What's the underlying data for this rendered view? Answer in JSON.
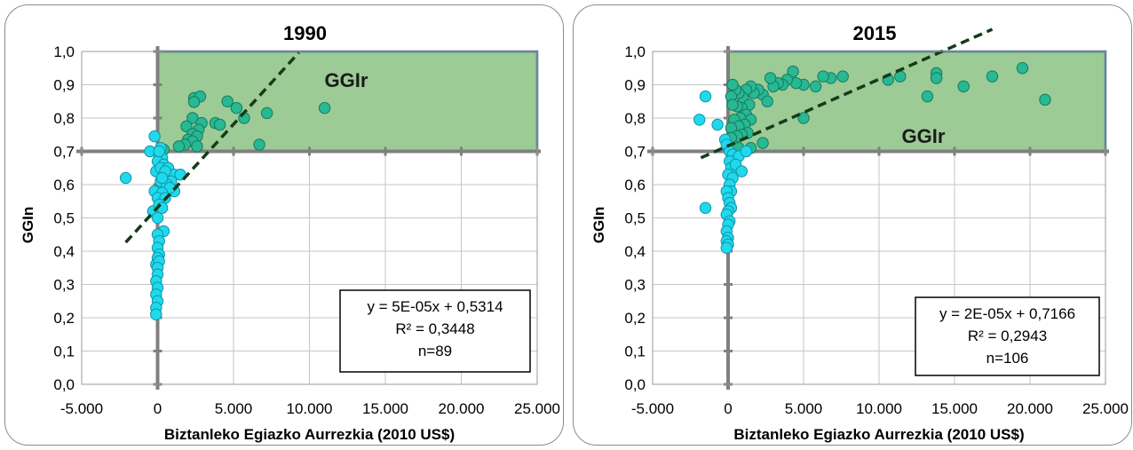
{
  "chart_data": [
    {
      "type": "scatter",
      "title": "1990",
      "xlabel": "Biztanleko Egiazko Aurrezkia (2010 US$)",
      "ylabel": "GGIn",
      "xlim": [
        -5000,
        25000
      ],
      "ylim": [
        0.0,
        1.0
      ],
      "x_ticks": [
        "-5.000",
        "0",
        "5.000",
        "10.000",
        "15.000",
        "20.000",
        "25.000"
      ],
      "y_ticks": [
        "0,0",
        "0,1",
        "0,2",
        "0,3",
        "0,4",
        "0,5",
        "0,6",
        "0,7",
        "0,8",
        "0,9",
        "1,0"
      ],
      "region": {
        "label": "GGIr",
        "x": [
          0,
          25000
        ],
        "y": [
          0.7,
          1.0
        ]
      },
      "trendline": {
        "slope": 5e-05,
        "intercept": 0.5314,
        "x_range": [
          -2100,
          9300
        ]
      },
      "stats": [
        "y = 5E-05x + 0,5314",
        "R² = 0,3448",
        "n=89"
      ],
      "series": [
        {
          "color": "#27b894",
          "points": [
            [
              2400,
              0.86
            ],
            [
              2800,
              0.865
            ],
            [
              4600,
              0.85
            ],
            [
              5200,
              0.83
            ],
            [
              7200,
              0.815
            ],
            [
              11000,
              0.83
            ],
            [
              2400,
              0.848
            ],
            [
              2300,
              0.8
            ],
            [
              2900,
              0.785
            ],
            [
              3800,
              0.785
            ],
            [
              4100,
              0.78
            ],
            [
              5700,
              0.8
            ],
            [
              1900,
              0.775
            ],
            [
              2700,
              0.765
            ],
            [
              2300,
              0.752
            ],
            [
              2600,
              0.745
            ],
            [
              2000,
              0.735
            ],
            [
              2300,
              0.73
            ],
            [
              1800,
              0.72
            ],
            [
              1400,
              0.715
            ],
            [
              2600,
              0.715
            ],
            [
              6700,
              0.72
            ],
            [
              400,
              0.705
            ]
          ]
        },
        {
          "color": "#1fd9ec",
          "points": [
            [
              -2100,
              0.62
            ],
            [
              -500,
              0.7
            ],
            [
              -200,
              0.745
            ],
            [
              -300,
              0.52
            ],
            [
              -200,
              0.58
            ],
            [
              -100,
              0.64
            ],
            [
              100,
              0.69
            ],
            [
              300,
              0.68
            ],
            [
              0,
              0.67
            ],
            [
              400,
              0.66
            ],
            [
              200,
              0.65
            ],
            [
              700,
              0.65
            ],
            [
              1100,
              0.63
            ],
            [
              1500,
              0.63
            ],
            [
              900,
              0.61
            ],
            [
              200,
              0.61
            ],
            [
              600,
              0.6
            ],
            [
              1100,
              0.58
            ],
            [
              800,
              0.59
            ],
            [
              300,
              0.575
            ],
            [
              0,
              0.56
            ],
            [
              500,
              0.56
            ],
            [
              100,
              0.54
            ],
            [
              300,
              0.53
            ],
            [
              0,
              0.5
            ],
            [
              400,
              0.46
            ],
            [
              0,
              0.45
            ],
            [
              100,
              0.43
            ],
            [
              0,
              0.41
            ],
            [
              100,
              0.39
            ],
            [
              0,
              0.38
            ],
            [
              -100,
              0.36
            ],
            [
              100,
              0.37
            ],
            [
              0,
              0.35
            ],
            [
              0,
              0.33
            ],
            [
              -100,
              0.31
            ],
            [
              0,
              0.29
            ],
            [
              -100,
              0.27
            ],
            [
              0,
              0.25
            ],
            [
              -100,
              0.23
            ],
            [
              -100,
              0.21
            ],
            [
              200,
              0.71
            ],
            [
              100,
              0.7
            ],
            [
              500,
              0.64
            ],
            [
              300,
              0.62
            ]
          ]
        }
      ]
    },
    {
      "type": "scatter",
      "title": "2015",
      "xlabel": "Biztanleko Egiazko Aurrezkia (2010 US$)",
      "ylabel": "GGIn",
      "xlim": [
        -5000,
        25000
      ],
      "ylim": [
        0.0,
        1.0
      ],
      "x_ticks": [
        "-5.000",
        "0",
        "5.000",
        "10.000",
        "15.000",
        "20.000",
        "25.000"
      ],
      "y_ticks": [
        "0,0",
        "0,1",
        "0,2",
        "0,3",
        "0,4",
        "0,5",
        "0,6",
        "0,7",
        "0,8",
        "0,9",
        "1,0"
      ],
      "region": {
        "label": "GGIr",
        "x": [
          0,
          25000
        ],
        "y": [
          0.7,
          1.0
        ]
      },
      "trendline": {
        "slope": 2e-05,
        "intercept": 0.7166,
        "x_range": [
          -1800,
          17500
        ]
      },
      "stats": [
        "y = 2E-05x + 0,7166",
        "R² = 0,2943",
        "n=106"
      ],
      "series": [
        {
          "color": "#27b894",
          "points": [
            [
              19500,
              0.95
            ],
            [
              17500,
              0.925
            ],
            [
              15600,
              0.895
            ],
            [
              21000,
              0.855
            ],
            [
              13800,
              0.935
            ],
            [
              13800,
              0.92
            ],
            [
              11400,
              0.925
            ],
            [
              10600,
              0.915
            ],
            [
              13200,
              0.865
            ],
            [
              7600,
              0.925
            ],
            [
              6800,
              0.92
            ],
            [
              6300,
              0.925
            ],
            [
              5800,
              0.895
            ],
            [
              5000,
              0.9
            ],
            [
              4500,
              0.905
            ],
            [
              4300,
              0.94
            ],
            [
              3900,
              0.915
            ],
            [
              3600,
              0.9
            ],
            [
              3300,
              0.905
            ],
            [
              3000,
              0.895
            ],
            [
              2800,
              0.92
            ],
            [
              2300,
              0.87
            ],
            [
              2000,
              0.885
            ],
            [
              1700,
              0.875
            ],
            [
              1500,
              0.895
            ],
            [
              1200,
              0.885
            ],
            [
              1000,
              0.86
            ],
            [
              700,
              0.875
            ],
            [
              500,
              0.885
            ],
            [
              300,
              0.9
            ],
            [
              200,
              0.865
            ],
            [
              2600,
              0.85
            ],
            [
              1400,
              0.84
            ],
            [
              900,
              0.83
            ],
            [
              600,
              0.835
            ],
            [
              300,
              0.84
            ],
            [
              1200,
              0.81
            ],
            [
              800,
              0.8
            ],
            [
              400,
              0.795
            ],
            [
              1500,
              0.795
            ],
            [
              1100,
              0.78
            ],
            [
              700,
              0.775
            ],
            [
              200,
              0.77
            ],
            [
              1300,
              0.755
            ],
            [
              900,
              0.75
            ],
            [
              600,
              0.745
            ],
            [
              200,
              0.74
            ],
            [
              2300,
              0.725
            ],
            [
              1500,
              0.71
            ],
            [
              700,
              0.71
            ],
            [
              5000,
              0.8
            ]
          ]
        },
        {
          "color": "#1fd9ec",
          "points": [
            [
              -1500,
              0.865
            ],
            [
              -1900,
              0.795
            ],
            [
              -700,
              0.78
            ],
            [
              -1500,
              0.53
            ],
            [
              -200,
              0.735
            ],
            [
              -100,
              0.72
            ],
            [
              100,
              0.7
            ],
            [
              300,
              0.69
            ],
            [
              700,
              0.685
            ],
            [
              1200,
              0.7
            ],
            [
              100,
              0.67
            ],
            [
              200,
              0.65
            ],
            [
              500,
              0.66
            ],
            [
              900,
              0.64
            ],
            [
              0,
              0.63
            ],
            [
              300,
              0.62
            ],
            [
              100,
              0.6
            ],
            [
              200,
              0.58
            ],
            [
              -100,
              0.58
            ],
            [
              0,
              0.56
            ],
            [
              100,
              0.545
            ],
            [
              200,
              0.53
            ],
            [
              0,
              0.52
            ],
            [
              -100,
              0.51
            ],
            [
              100,
              0.49
            ],
            [
              0,
              0.48
            ],
            [
              -100,
              0.46
            ],
            [
              0,
              0.44
            ],
            [
              -100,
              0.43
            ],
            [
              0,
              0.42
            ],
            [
              -100,
              0.41
            ]
          ]
        }
      ]
    }
  ]
}
